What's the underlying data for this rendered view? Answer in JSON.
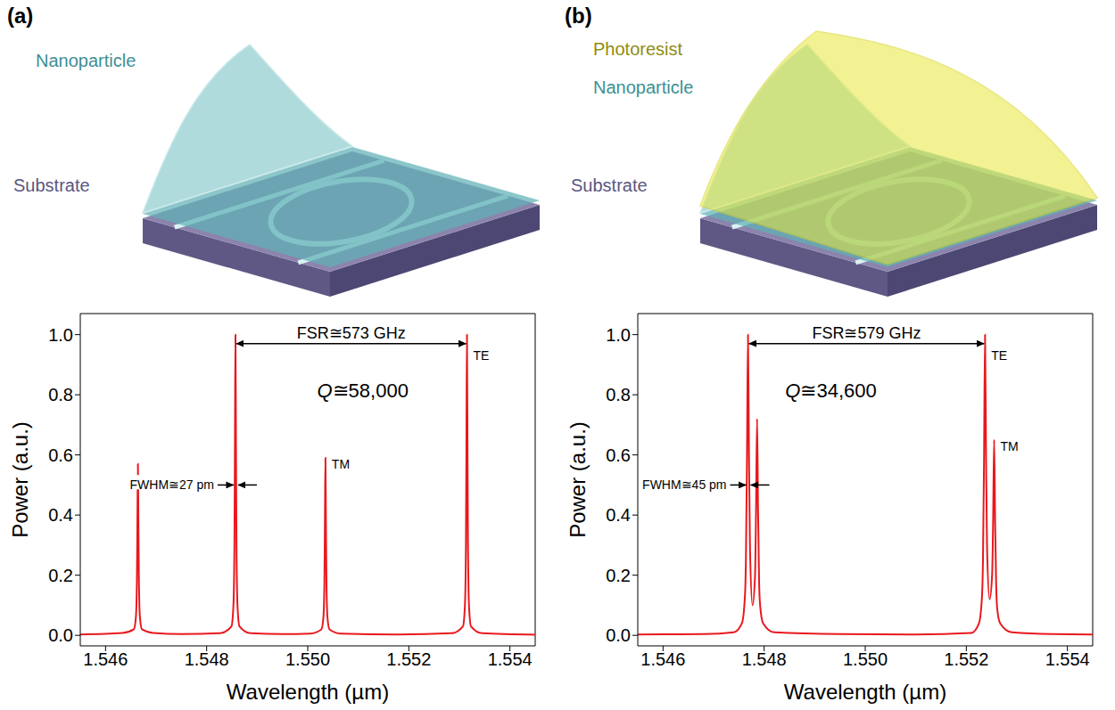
{
  "illustrations": [
    {
      "panel": "(a)",
      "layers": {
        "nanoparticle": "Nanoparticle",
        "substrate": "Substrate"
      }
    },
    {
      "panel": "(b)",
      "layers": {
        "photoresist": "Photoresist",
        "nanoparticle": "Nanoparticle",
        "substrate": "Substrate"
      }
    }
  ],
  "chart_data": [
    {
      "type": "line",
      "x_label": "Wavelength (µm)",
      "y_label": "Power (a.u.)",
      "color": "#e8191e",
      "xlim": [
        1.5455,
        1.5545
      ],
      "xticks": [
        1.546,
        1.548,
        {
          "value": 1.55,
          "label": "1.550"
        },
        1.552,
        1.554
      ],
      "ylim": [
        -0.035,
        1.07
      ],
      "yticks": [
        {
          "value": 0,
          "label": "0.0"
        },
        0.2,
        0.4,
        0.6,
        0.8,
        {
          "value": 1,
          "label": "1.0"
        }
      ],
      "annotations": {
        "fsr": "FSR≅573 GHz",
        "q": "Q≅58,000",
        "fwhm": "FWHM≅27 pm",
        "te": "TE",
        "tm": "TM"
      },
      "x": [
        1.5455,
        1.54634,
        1.54656,
        1.5466,
        1.54662,
        1.54663,
        1.54664,
        1.54665,
        1.54666,
        1.54668,
        1.54672,
        1.54694,
        1.5475,
        1.54827,
        1.54849,
        1.54853,
        1.54855,
        1.54856,
        1.54857,
        1.54858,
        1.54859,
        1.54861,
        1.54865,
        1.54887,
        1.5495,
        1.55005,
        1.55027,
        1.55031,
        1.55033,
        1.55034,
        1.55035,
        1.55036,
        1.55037,
        1.55039,
        1.55043,
        1.55065,
        1.5518,
        1.55285,
        1.55307,
        1.55311,
        1.55313,
        1.55314,
        1.55315,
        1.55316,
        1.55317,
        1.55319,
        1.55323,
        1.55345,
        1.5545
      ],
      "values": [
        0.003,
        0.008,
        0.02,
        0.06,
        0.18,
        0.37,
        0.57,
        0.37,
        0.18,
        0.06,
        0.02,
        0.008,
        0.004,
        0.007,
        0.03,
        0.1,
        0.31,
        0.65,
        1.0,
        0.65,
        0.31,
        0.1,
        0.03,
        0.007,
        0.004,
        0.006,
        0.02,
        0.06,
        0.18,
        0.38,
        0.59,
        0.38,
        0.18,
        0.06,
        0.02,
        0.006,
        0.003,
        0.007,
        0.03,
        0.1,
        0.31,
        0.65,
        1.0,
        0.65,
        0.31,
        0.1,
        0.03,
        0.007,
        0.002
      ]
    },
    {
      "type": "line",
      "x_label": "Wavelength (µm)",
      "y_label": "Power (a.u.)",
      "color": "#e8191e",
      "xlim": [
        1.5455,
        1.5545
      ],
      "xticks": [
        1.546,
        1.548,
        {
          "value": 1.55,
          "label": "1.550"
        },
        1.552,
        1.554
      ],
      "ylim": [
        -0.035,
        1.07
      ],
      "yticks": [
        {
          "value": 0,
          "label": "0.0"
        },
        0.2,
        0.4,
        0.6,
        0.8,
        {
          "value": 1,
          "label": "1.0"
        }
      ],
      "annotations": {
        "fsr": "FSR≅579 GHz",
        "q": "Q≅34,600",
        "fwhm": "FWHM≅45 pm",
        "te": "TE",
        "tm": "TM"
      },
      "x": [
        1.5455,
        1.5468,
        1.5474,
        1.54756,
        1.54762,
        1.54764,
        1.54766,
        1.54768,
        1.5477,
        1.54772,
        1.54777,
        1.54782,
        1.54784,
        1.54786,
        1.54788,
        1.5479,
        1.54792,
        1.54798,
        1.5482,
        1.5495,
        1.551,
        1.5521,
        1.55225,
        1.55231,
        1.55233,
        1.55235,
        1.55237,
        1.55239,
        1.55241,
        1.55246,
        1.55251,
        1.55253,
        1.55255,
        1.55257,
        1.55259,
        1.55261,
        1.55267,
        1.5529,
        1.5537,
        1.5545
      ],
      "values": [
        0.003,
        0.004,
        0.01,
        0.04,
        0.13,
        0.26,
        0.58,
        1.0,
        0.6,
        0.29,
        0.1,
        0.2,
        0.42,
        0.72,
        0.41,
        0.18,
        0.1,
        0.04,
        0.01,
        0.004,
        0.003,
        0.008,
        0.04,
        0.13,
        0.26,
        0.58,
        1.0,
        0.6,
        0.29,
        0.12,
        0.2,
        0.38,
        0.65,
        0.37,
        0.17,
        0.09,
        0.04,
        0.01,
        0.004,
        0.003
      ]
    }
  ]
}
